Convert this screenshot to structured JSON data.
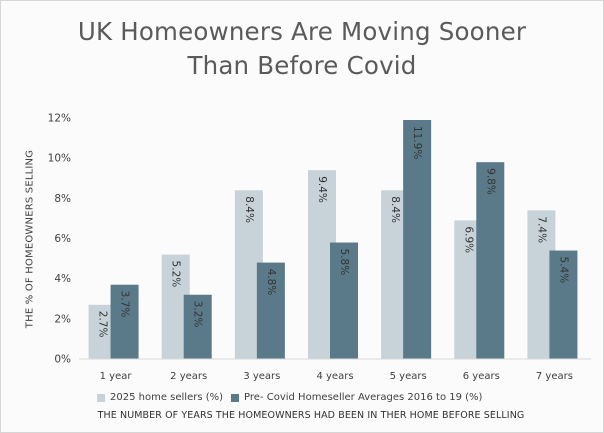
{
  "chart_data": {
    "type": "bar",
    "title": "UK Homeowners Are Moving Sooner Than Before Covid",
    "title_lines": [
      "UK Homeowners Are Moving Sooner",
      "Than Before Covid"
    ],
    "ylabel": "THE % OF HOMEOWNERS SELLING",
    "xlabel": "THE NUMBER OF YEARS THE HOMEOWNERS HAD BEEN IN THER HOME BEFORE SELLING",
    "categories": [
      "1 year",
      "2 years",
      "3 years",
      "4 years",
      "5 years",
      "6 years",
      "7 years"
    ],
    "series": [
      {
        "name": "2025 home sellers (%)",
        "color": "#c7d2d9",
        "values": [
          2.7,
          5.2,
          8.4,
          9.4,
          8.4,
          6.9,
          7.4
        ],
        "labels": [
          "2.7%",
          "5.2%",
          "8.4%",
          "9.4%",
          "8.4%",
          "6.9%",
          "7.4%"
        ]
      },
      {
        "name": "Pre- Covid Homeseller Averages 2016 to 19 (%)",
        "color": "#5a7a89",
        "values": [
          3.7,
          3.2,
          4.8,
          5.8,
          11.9,
          9.8,
          5.4
        ],
        "labels": [
          "3.7%",
          "3.2%",
          "4.8%",
          "5.8%",
          "11.9%",
          "9.8%",
          "5.4%"
        ]
      }
    ],
    "ylim": [
      0,
      12
    ],
    "yticks": [
      0,
      2,
      4,
      6,
      8,
      10,
      12
    ],
    "ytick_labels": [
      "0%",
      "2%",
      "4%",
      "6%",
      "8%",
      "10%",
      "12%"
    ],
    "grid": false,
    "legend_position": "bottom"
  }
}
